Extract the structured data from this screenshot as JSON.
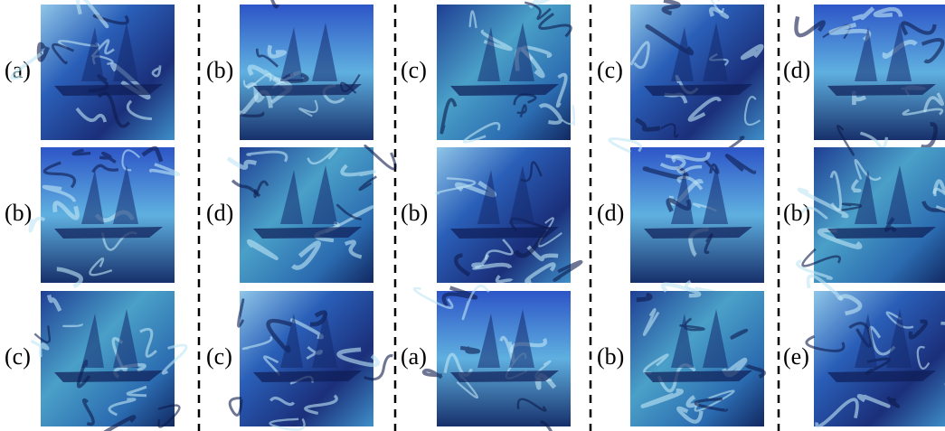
{
  "panels": [
    {
      "labels": [
        "(a)",
        "(b)",
        "(c)"
      ]
    },
    {
      "labels": [
        "(b)",
        "(d)",
        "(c)"
      ]
    },
    {
      "labels": [
        "(c)",
        "(b)",
        "(a)"
      ]
    },
    {
      "labels": [
        "(c)",
        "(d)",
        "(b)"
      ]
    },
    {
      "labels": [
        "(d)",
        "(b)",
        "(e)"
      ]
    }
  ]
}
